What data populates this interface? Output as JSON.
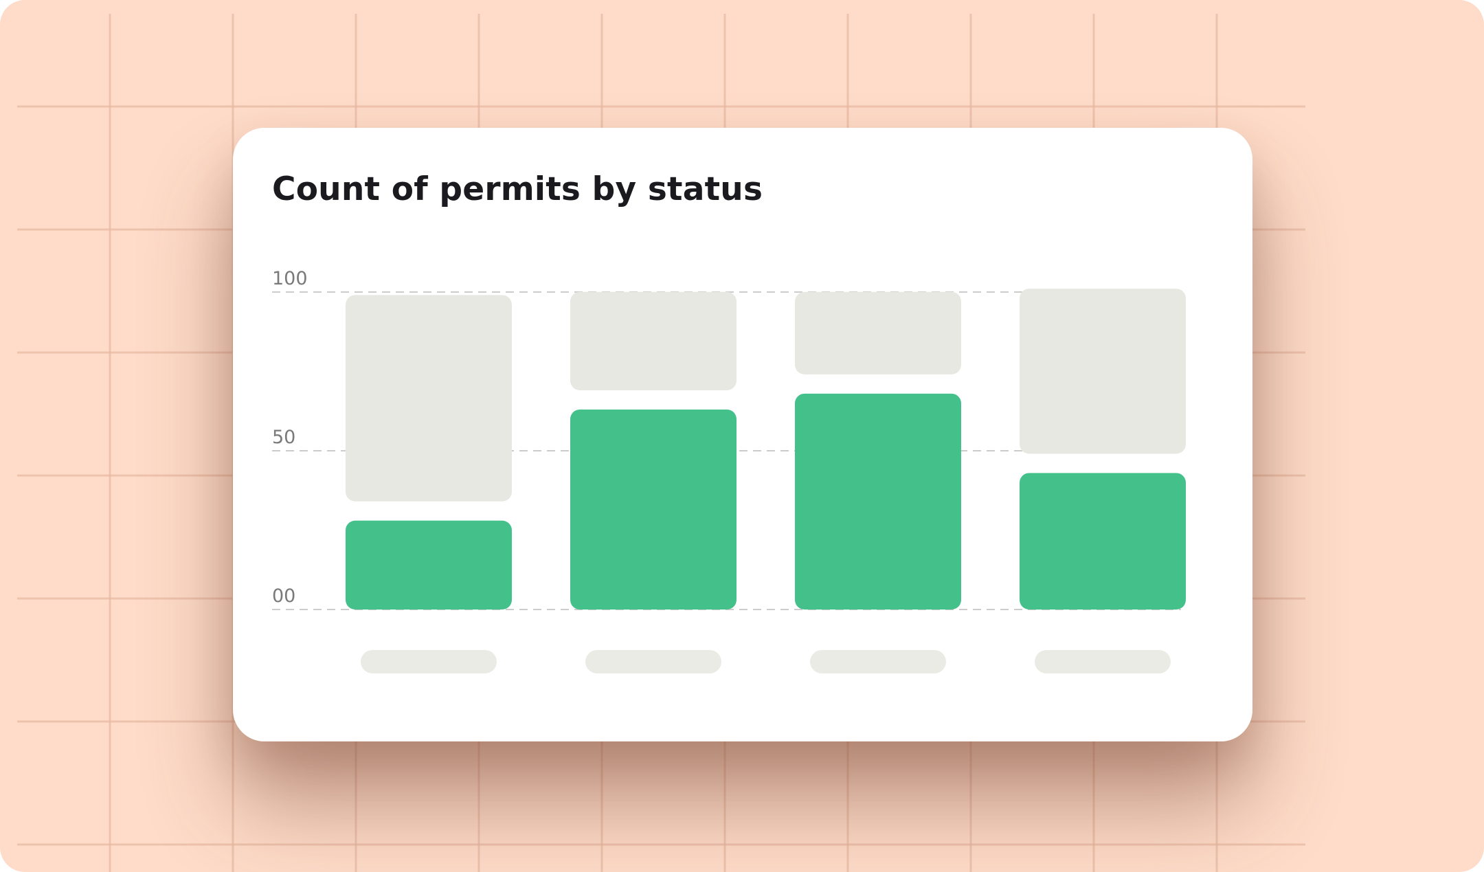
{
  "colors": {
    "background": "#fedcc9",
    "grid_line": "#e8b9a2",
    "card": "#ffffff",
    "bar_value": "#44c18a",
    "bar_capacity": "#e8e8e3",
    "label_placeholder": "#ebebe6",
    "gridline": "#cccccc",
    "tick_text": "#7a7a7a",
    "title_text": "#1b1b1f"
  },
  "chart_data": {
    "type": "bar",
    "title": "Count of permits by status",
    "xlabel": "",
    "ylabel": "",
    "ylim": [
      0,
      100
    ],
    "y_ticks": [
      {
        "value": 100,
        "label": "100"
      },
      {
        "value": 50,
        "label": "50"
      },
      {
        "value": 0,
        "label": "00"
      }
    ],
    "grid": true,
    "legend": "none",
    "categories": [
      "",
      "",
      "",
      ""
    ],
    "series": [
      {
        "values": [
          28,
          63,
          68,
          43
        ]
      },
      {
        "values": [
          65,
          31,
          26,
          52
        ]
      }
    ]
  }
}
